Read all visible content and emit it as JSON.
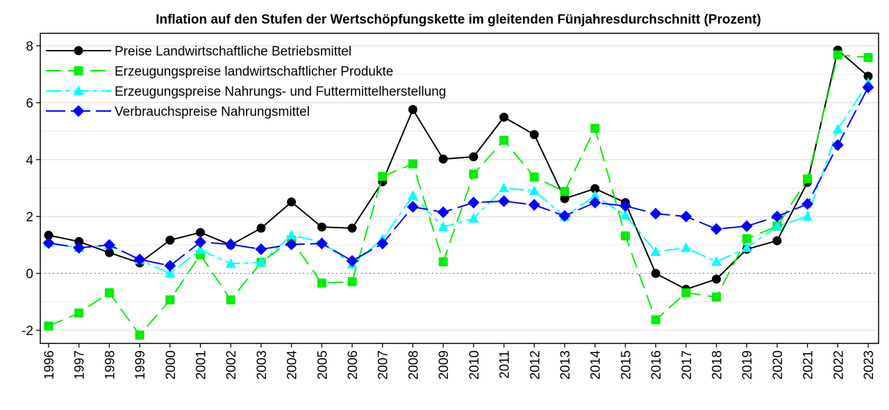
{
  "chart_data": {
    "type": "line",
    "title": "Inflation auf den Stufen der Wertschöpfungskette im gleitenden Fünjahresdurchschnitt (Prozent)",
    "xlabel": "",
    "ylabel": "",
    "ylim": [
      -2.46,
      8.44
    ],
    "yticks": [
      -2,
      0,
      2,
      4,
      6,
      8
    ],
    "grid": true,
    "legend_position": "top-left",
    "x": [
      "1996",
      "1997",
      "1998",
      "1999",
      "2000",
      "2001",
      "2002",
      "2003",
      "2004",
      "2005",
      "2006",
      "2007",
      "2008",
      "2009",
      "2010",
      "2011",
      "2012",
      "2013",
      "2014",
      "2015",
      "2016",
      "2017",
      "2018",
      "2019",
      "2020",
      "2021",
      "2022",
      "2023"
    ],
    "series": [
      {
        "name": "Preise Landwirtschaftliche Betriebsmittel",
        "color": "#000000",
        "marker": "circle",
        "dash": "solid",
        "values": [
          1.34,
          1.12,
          0.73,
          0.37,
          1.17,
          1.44,
          1.0,
          1.59,
          2.51,
          1.63,
          1.59,
          3.22,
          5.76,
          4.02,
          4.1,
          5.49,
          4.88,
          2.63,
          2.98,
          2.49,
          0.0,
          -0.56,
          -0.2,
          0.85,
          1.15,
          3.2,
          7.85,
          6.93
        ]
      },
      {
        "name": "Erzeugungspreise landwirtschaftlicher Produkte",
        "color": "#00ee00",
        "marker": "square",
        "dash": "long",
        "values": [
          -1.85,
          -1.39,
          -0.68,
          -2.17,
          -0.93,
          0.66,
          -0.93,
          0.39,
          1.17,
          -0.34,
          -0.29,
          3.41,
          3.85,
          0.41,
          3.49,
          4.68,
          3.39,
          2.88,
          5.1,
          1.32,
          -1.63,
          -0.68,
          -0.83,
          1.22,
          1.66,
          3.32,
          7.68,
          7.59
        ]
      },
      {
        "name": "Erzeugungspreise Nahrungs- und Futtermittelherstellung",
        "color": "#00ffff",
        "marker": "triangle",
        "dash": "dashdot",
        "values": [
          1.07,
          0.9,
          1.0,
          0.47,
          0.0,
          0.83,
          0.34,
          0.39,
          1.34,
          1.1,
          0.32,
          1.2,
          2.73,
          1.63,
          1.93,
          3.0,
          2.9,
          2.0,
          2.73,
          2.05,
          0.76,
          0.9,
          0.41,
          0.9,
          1.66,
          2.0,
          5.07,
          6.7
        ]
      },
      {
        "name": "Verbrauchspreise Nahrungsmittel",
        "color": "#0000ff",
        "marker": "diamond",
        "dash": "longshort",
        "values": [
          1.07,
          0.9,
          1.0,
          0.49,
          0.27,
          1.1,
          1.02,
          0.85,
          1.02,
          1.05,
          0.44,
          1.05,
          2.34,
          2.15,
          2.49,
          2.54,
          2.41,
          2.02,
          2.49,
          2.37,
          2.1,
          2.0,
          1.56,
          1.66,
          2.0,
          2.44,
          4.51,
          6.54
        ]
      }
    ]
  }
}
